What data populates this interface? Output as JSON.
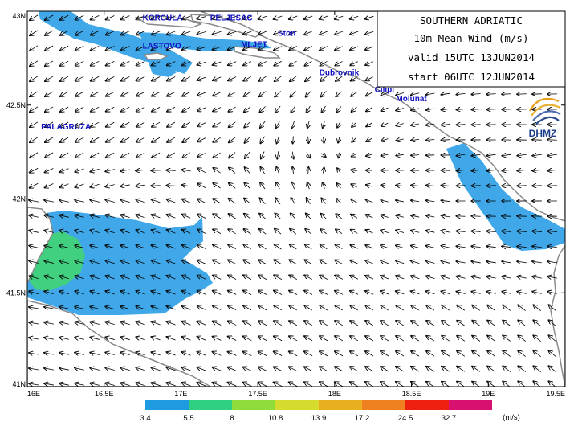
{
  "title_box": {
    "line1": "SOUTHERN ADRIATIC",
    "line2": "10m  Mean  Wind  (m/s)",
    "line3": "valid  15UTC  13JUN2014",
    "line4": "start  06UTC  12JUN2014"
  },
  "logo": {
    "text": "DHMZ",
    "icon": "dhmz-swirl-icon"
  },
  "axes": {
    "lon_range": [
      16.0,
      19.5
    ],
    "lat_range": [
      41.0,
      43.0
    ],
    "lon_ticks": [
      "16E",
      "16.5E",
      "17E",
      "17.5E",
      "18E",
      "18.5E",
      "19E",
      "19.5E"
    ],
    "lat_ticks": [
      "43N",
      "42.5N",
      "42N",
      "41.5N",
      "41N"
    ]
  },
  "places": [
    {
      "name": "KORCULA",
      "lon": 16.75,
      "lat": 42.95
    },
    {
      "name": "PELJESAC",
      "lon": 17.19,
      "lat": 42.95
    },
    {
      "name": "LASTOVO",
      "lon": 16.75,
      "lat": 42.8
    },
    {
      "name": "Ston",
      "lon": 17.63,
      "lat": 42.87
    },
    {
      "name": "MLJET",
      "lon": 17.39,
      "lat": 42.81
    },
    {
      "name": "Dubrovnik",
      "lon": 17.9,
      "lat": 42.66
    },
    {
      "name": "Cilipi",
      "lon": 18.26,
      "lat": 42.57
    },
    {
      "name": "Molunat",
      "lon": 18.4,
      "lat": 42.52
    },
    {
      "name": "PALAGRUZA",
      "lon": 16.09,
      "lat": 42.37
    }
  ],
  "colorbar": {
    "unit": "(m/s)",
    "thresholds": [
      "3.4",
      "5.5",
      "8",
      "10.8",
      "13.9",
      "17.2",
      "24.5",
      "32.7"
    ],
    "colors": [
      "#1e9be0",
      "#2ecf80",
      "#8fdc3a",
      "#d6dc2e",
      "#e8b020",
      "#ee8020",
      "#ee2010",
      "#d81070"
    ]
  },
  "wind_colors": {
    "calm_blue": "#40a8e8",
    "moderate_green": "#40d080",
    "land": "#ffffff",
    "coast": "#808080"
  }
}
